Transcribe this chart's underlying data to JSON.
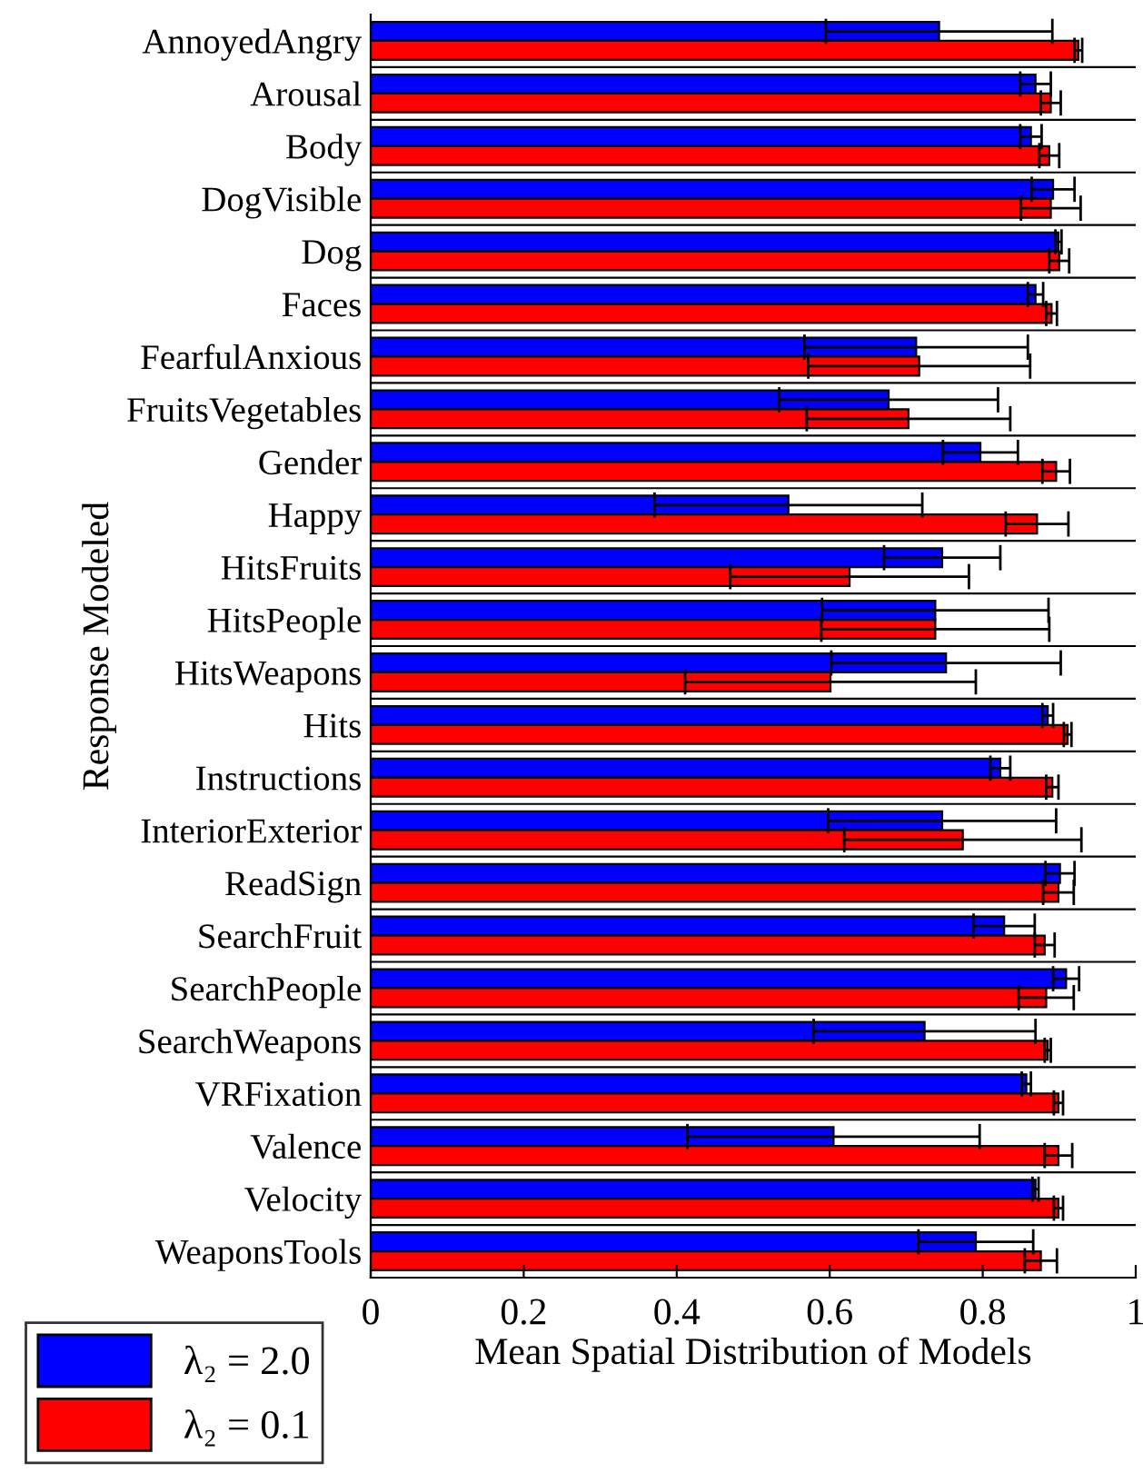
{
  "chart_data": {
    "type": "bar",
    "orientation": "horizontal",
    "xlabel": "Mean Spatial Distribution of Models",
    "ylabel": "Response Modeled",
    "categories": [
      "AnnoyedAngry",
      "Arousal",
      "Body",
      "DogVisible",
      "Dog",
      "Faces",
      "FearfulAnxious",
      "FruitsVegetables",
      "Gender",
      "Happy",
      "HitsFruits",
      "HitsPeople",
      "HitsWeapons",
      "Hits",
      "Instructions",
      "InteriorExterior",
      "ReadSign",
      "SearchFruit",
      "SearchPeople",
      "SearchWeapons",
      "VRFixation",
      "Valence",
      "Velocity",
      "WeaponsTools"
    ],
    "series": [
      {
        "name": "λ₂ = 2.0",
        "color": "#0000ff",
        "values": [
          0.743,
          0.869,
          0.863,
          0.892,
          0.899,
          0.869,
          0.713,
          0.677,
          0.797,
          0.546,
          0.747,
          0.738,
          0.752,
          0.885,
          0.823,
          0.747,
          0.901,
          0.828,
          0.909,
          0.724,
          0.857,
          0.605,
          0.869,
          0.791
        ],
        "errors": [
          0.148,
          0.02,
          0.014,
          0.028,
          0.004,
          0.01,
          0.146,
          0.143,
          0.049,
          0.175,
          0.076,
          0.148,
          0.15,
          0.007,
          0.013,
          0.149,
          0.019,
          0.04,
          0.017,
          0.145,
          0.006,
          0.191,
          0.004,
          0.075
        ]
      },
      {
        "name": "λ₂ = 0.1",
        "color": "#ff0000",
        "values": [
          0.925,
          0.889,
          0.887,
          0.889,
          0.9,
          0.89,
          0.717,
          0.703,
          0.896,
          0.871,
          0.626,
          0.738,
          0.601,
          0.911,
          0.891,
          0.774,
          0.899,
          0.881,
          0.883,
          0.885,
          0.899,
          0.899,
          0.899,
          0.876
        ],
        "errors": [
          0.005,
          0.013,
          0.013,
          0.039,
          0.013,
          0.007,
          0.145,
          0.133,
          0.018,
          0.041,
          0.156,
          0.149,
          0.19,
          0.005,
          0.008,
          0.155,
          0.02,
          0.013,
          0.036,
          0.004,
          0.006,
          0.018,
          0.006,
          0.021
        ]
      }
    ],
    "xlim": [
      0,
      1
    ],
    "xticks": [
      0,
      0.2,
      0.4,
      0.6,
      0.8,
      1
    ],
    "grid": "y",
    "legend": "bottom left"
  }
}
